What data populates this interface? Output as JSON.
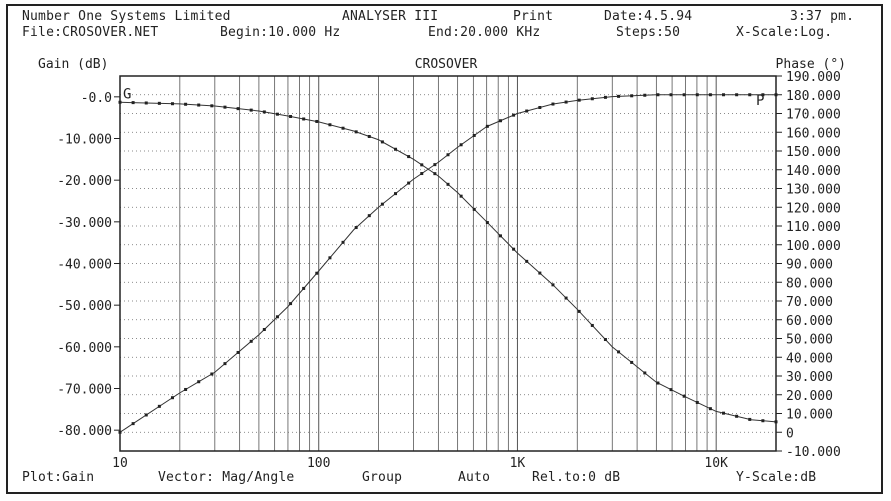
{
  "header": {
    "company": "Number One Systems Limited",
    "product": "ANALYSER III",
    "print": "Print",
    "date": "Date:4.5.94",
    "time": "3:37 pm.",
    "file": "File:CROSOVER.NET",
    "begin": "Begin:10.000 Hz",
    "end": "End:20.000 KHz",
    "steps": "Steps:50",
    "xscale": "X-Scale:Log."
  },
  "footer": {
    "plot": "Plot:Gain",
    "vector": "Vector: Mag/Angle",
    "group": "Group",
    "auto": "Auto",
    "rel": "Rel.to:0 dB",
    "yscale": "Y-Scale:dB"
  },
  "colors": {
    "ink": "#222222",
    "grid": "#555555",
    "background": "#ffffff"
  },
  "chart_data": {
    "type": "line",
    "title": "CROSOVER",
    "ylabel_left": "Gain (dB)",
    "ylabel_right": "Phase (°)",
    "x_scale": "log",
    "xlim": [
      10,
      20000
    ],
    "ylim_left": [
      -85,
      5
    ],
    "ylim_right": [
      -10,
      190
    ],
    "grid": true,
    "x_ticks": [
      {
        "value": 10,
        "label": "10"
      },
      {
        "value": 100,
        "label": "100"
      },
      {
        "value": 1000,
        "label": "1K"
      },
      {
        "value": 10000,
        "label": "10K"
      }
    ],
    "y_ticks_left": [
      {
        "value": 0,
        "label": "-0.0"
      },
      {
        "value": -10,
        "label": "-10.000"
      },
      {
        "value": -20,
        "label": "-20.000"
      },
      {
        "value": -30,
        "label": "-30.000"
      },
      {
        "value": -40,
        "label": "-40.000"
      },
      {
        "value": -50,
        "label": "-50.000"
      },
      {
        "value": -60,
        "label": "-60.000"
      },
      {
        "value": -70,
        "label": "-70.000"
      },
      {
        "value": -80,
        "label": "-80.000"
      }
    ],
    "y_ticks_right": [
      {
        "value": 190,
        "label": "190.000"
      },
      {
        "value": 180,
        "label": "180.000"
      },
      {
        "value": 170,
        "label": "170.000"
      },
      {
        "value": 160,
        "label": "160.000"
      },
      {
        "value": 150,
        "label": "150.000"
      },
      {
        "value": 140,
        "label": "140.000"
      },
      {
        "value": 130,
        "label": "130.000"
      },
      {
        "value": 120,
        "label": "120.000"
      },
      {
        "value": 110,
        "label": "110.000"
      },
      {
        "value": 100,
        "label": "100.000"
      },
      {
        "value": 90,
        "label": "90.000"
      },
      {
        "value": 80,
        "label": "80.000"
      },
      {
        "value": 70,
        "label": "70.000"
      },
      {
        "value": 60,
        "label": "60.000"
      },
      {
        "value": 50,
        "label": "50.000"
      },
      {
        "value": 40,
        "label": "40.000"
      },
      {
        "value": 30,
        "label": "30.000"
      },
      {
        "value": 20,
        "label": "20.000"
      },
      {
        "value": 10,
        "label": "10.000"
      },
      {
        "value": 0,
        "label": "0"
      },
      {
        "value": -10,
        "label": "-10.000"
      }
    ],
    "series": [
      {
        "name": "G",
        "axis": "left",
        "x": [
          10,
          20,
          30,
          50,
          70,
          100,
          150,
          200,
          300,
          400,
          500,
          700,
          1000,
          1500,
          2000,
          3000,
          5000,
          7000,
          10000,
          15000,
          20000
        ],
        "y": [
          -1.3,
          -1.7,
          -2.2,
          -3.4,
          -4.6,
          -6.0,
          -8.2,
          -10.3,
          -15.0,
          -19.0,
          -23.0,
          -30.0,
          -37.5,
          -45.0,
          -51.0,
          -60.0,
          -68.5,
          -72.0,
          -75.5,
          -77.5,
          -78.0
        ]
      },
      {
        "name": "P",
        "axis": "right",
        "x": [
          10,
          20,
          30,
          50,
          70,
          100,
          150,
          200,
          300,
          400,
          500,
          700,
          1000,
          1500,
          2000,
          3000,
          5000,
          7000,
          10000,
          15000,
          20000
        ],
        "y": [
          0,
          21,
          32,
          52,
          67,
          86,
          108,
          120,
          135,
          144,
          152,
          163,
          170,
          175,
          177,
          179,
          180,
          180,
          180,
          180,
          180
        ]
      }
    ]
  }
}
